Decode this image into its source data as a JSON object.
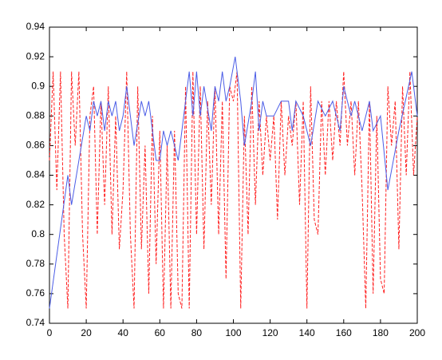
{
  "chart_data": {
    "type": "line",
    "xlim": [
      0,
      200
    ],
    "xticks": [
      0,
      20,
      40,
      60,
      80,
      100,
      120,
      140,
      160,
      180,
      200
    ],
    "ylim": [
      0.74,
      0.94
    ],
    "yticks": [
      0.74,
      0.76,
      0.78,
      0.8,
      0.82,
      0.84,
      0.86,
      0.88,
      0.9,
      0.92,
      0.94
    ],
    "grid": false,
    "series": [
      {
        "color": "#ff2020",
        "dashed": true,
        "x": [
          0,
          2,
          4,
          6,
          8,
          10,
          12,
          14,
          16,
          18,
          20,
          22,
          24,
          26,
          28,
          30,
          32,
          34,
          36,
          38,
          40,
          42,
          44,
          46,
          48,
          50,
          52,
          54,
          56,
          58,
          60,
          62,
          64,
          66,
          68,
          70,
          72,
          74,
          76,
          78,
          80,
          82,
          84,
          86,
          88,
          90,
          92,
          94,
          96,
          98,
          100,
          102,
          104,
          106,
          108,
          110,
          112,
          114,
          116,
          118,
          120,
          122,
          124,
          126,
          128,
          130,
          132,
          134,
          136,
          138,
          140,
          142,
          144,
          146,
          148,
          150,
          152,
          154,
          156,
          158,
          160,
          162,
          164,
          166,
          168,
          170,
          172,
          174,
          176,
          178,
          180,
          182,
          184,
          186,
          188,
          190,
          192,
          194,
          196,
          198,
          200
        ],
        "values": [
          0.85,
          0.91,
          0.83,
          0.91,
          0.8,
          0.75,
          0.91,
          0.86,
          0.91,
          0.8,
          0.75,
          0.88,
          0.9,
          0.8,
          0.89,
          0.82,
          0.9,
          0.8,
          0.88,
          0.79,
          0.83,
          0.91,
          0.8,
          0.75,
          0.9,
          0.79,
          0.86,
          0.76,
          0.88,
          0.78,
          0.87,
          0.75,
          0.86,
          0.75,
          0.87,
          0.76,
          0.75,
          0.9,
          0.75,
          0.91,
          0.8,
          0.9,
          0.79,
          0.89,
          0.82,
          0.9,
          0.8,
          0.89,
          0.77,
          0.9,
          0.89,
          0.91,
          0.75,
          0.88,
          0.8,
          0.9,
          0.82,
          0.89,
          0.84,
          0.88,
          0.85,
          0.88,
          0.81,
          0.89,
          0.84,
          0.88,
          0.86,
          0.89,
          0.82,
          0.89,
          0.75,
          0.9,
          0.81,
          0.8,
          0.89,
          0.84,
          0.89,
          0.85,
          0.89,
          0.86,
          0.91,
          0.86,
          0.89,
          0.84,
          0.89,
          0.83,
          0.75,
          0.89,
          0.76,
          0.88,
          0.77,
          0.76,
          0.9,
          0.86,
          0.89,
          0.79,
          0.9,
          0.84,
          0.91,
          0.84,
          0.88
        ]
      },
      {
        "color": "#4a5ce6",
        "dashed": false,
        "x": [
          0,
          10,
          12,
          20,
          22,
          24,
          26,
          28,
          30,
          32,
          34,
          36,
          38,
          40,
          42,
          46,
          50,
          52,
          54,
          58,
          60,
          62,
          64,
          66,
          70,
          72,
          76,
          78,
          80,
          82,
          84,
          88,
          90,
          92,
          94,
          96,
          98,
          101,
          104,
          106,
          110,
          112,
          114,
          116,
          118,
          122,
          126,
          130,
          132,
          134,
          138,
          142,
          146,
          150,
          154,
          158,
          160,
          164,
          166,
          170,
          174,
          176,
          180,
          184,
          190,
          197,
          200
        ],
        "values": [
          0.75,
          0.84,
          0.82,
          0.88,
          0.87,
          0.89,
          0.88,
          0.89,
          0.87,
          0.89,
          0.88,
          0.89,
          0.87,
          0.88,
          0.9,
          0.86,
          0.89,
          0.88,
          0.89,
          0.85,
          0.85,
          0.87,
          0.86,
          0.87,
          0.85,
          0.87,
          0.91,
          0.88,
          0.91,
          0.88,
          0.9,
          0.87,
          0.9,
          0.89,
          0.91,
          0.89,
          0.9,
          0.92,
          0.89,
          0.86,
          0.89,
          0.91,
          0.87,
          0.89,
          0.88,
          0.88,
          0.89,
          0.89,
          0.87,
          0.89,
          0.88,
          0.86,
          0.89,
          0.88,
          0.89,
          0.87,
          0.9,
          0.88,
          0.89,
          0.87,
          0.89,
          0.87,
          0.88,
          0.83,
          0.87,
          0.91,
          0.88
        ]
      }
    ]
  }
}
